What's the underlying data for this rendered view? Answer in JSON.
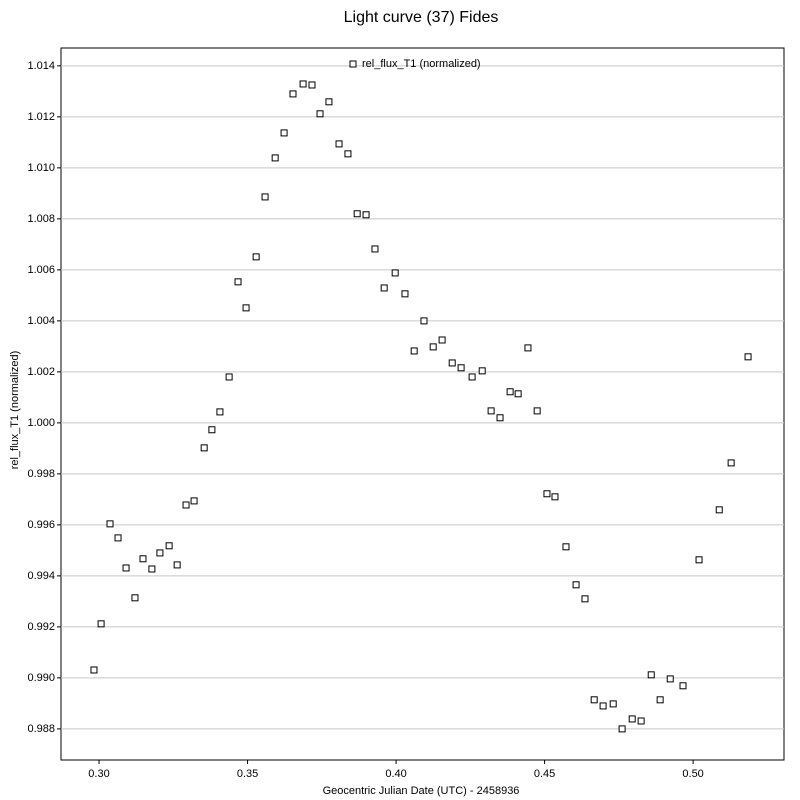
{
  "chart_data": {
    "type": "scatter",
    "title": "Light curve (37) Fides",
    "x_label": "Geocentric Julian Date (UTC) - 2458936",
    "y_label": "rel_flux_T1 (normalized)",
    "xlim": [
      0.2872,
      0.5306
    ],
    "ylim": [
      0.98678,
      1.0147
    ],
    "xticks": [
      {
        "value": 0.3,
        "label": "0.30"
      },
      0.35,
      {
        "value": 0.4,
        "label": "0.40"
      },
      0.45,
      {
        "value": 0.5,
        "label": "0.50"
      }
    ],
    "yticks": [
      0.988,
      {
        "value": 0.99,
        "label": "0.990"
      },
      0.992,
      0.994,
      0.996,
      0.998,
      {
        "value": 1,
        "label": "1.000"
      },
      1.002,
      1.004,
      1.006,
      1.008,
      {
        "value": 1.01,
        "label": "1.010"
      },
      1.012,
      1.014
    ],
    "grid": true,
    "legend": "top-center",
    "x": [
      0.2983,
      0.3007,
      0.3037,
      0.3064,
      0.3091,
      0.3121,
      0.3148,
      0.3178,
      0.3205,
      0.3236,
      0.3263,
      0.3293,
      0.332,
      0.3354,
      0.338,
      0.3407,
      0.3438,
      0.3468,
      0.3495,
      0.3529,
      0.3559,
      0.3593,
      0.3623,
      0.3653,
      0.3687,
      0.3717,
      0.3744,
      0.3774,
      0.3808,
      0.3838,
      0.3869,
      0.3899,
      0.3929,
      0.396,
      0.3997,
      0.403,
      0.4061,
      0.4094,
      0.4125,
      0.4155,
      0.4189,
      0.4219,
      0.4256,
      0.429,
      0.432,
      0.435,
      0.4384,
      0.4411,
      0.4444,
      0.4475,
      0.4508,
      0.4535,
      0.4572,
      0.4606,
      0.4636,
      0.4667,
      0.4697,
      0.4731,
      0.4761,
      0.4795,
      0.4825,
      0.4859,
      0.4889,
      0.4923,
      0.4966,
      0.502,
      0.5088,
      0.5128,
      0.5185
    ],
    "series": [
      {
        "name": "rel_flux_T1 (normalized)",
        "color": "#000000",
        "values": [
          0.99031,
          0.99212,
          0.99604,
          0.99549,
          0.99431,
          0.99314,
          0.99467,
          0.99427,
          0.9949,
          0.99518,
          0.99443,
          0.99678,
          0.99694,
          0.99902,
          0.99973,
          1.00043,
          1.0018,
          1.00553,
          1.00451,
          1.00651,
          1.00886,
          1.01039,
          1.01137,
          1.0129,
          1.01329,
          1.01325,
          1.01212,
          1.01259,
          1.01094,
          1.01055,
          1.0082,
          1.00816,
          1.00682,
          1.00529,
          1.00588,
          1.00506,
          1.00282,
          1.004,
          1.00298,
          1.00325,
          1.00235,
          1.00216,
          1.0018,
          1.00204,
          1.00047,
          1.0002,
          1.00122,
          1.00114,
          1.00294,
          1.00047,
          0.99722,
          0.9971,
          0.99514,
          0.99365,
          0.9931,
          0.98914,
          0.9889,
          0.98898,
          0.988,
          0.98839,
          0.98831,
          0.99012,
          0.98914,
          0.98996,
          0.98969,
          0.99463,
          0.99659,
          0.99843,
          1.00259
        ]
      }
    ]
  }
}
